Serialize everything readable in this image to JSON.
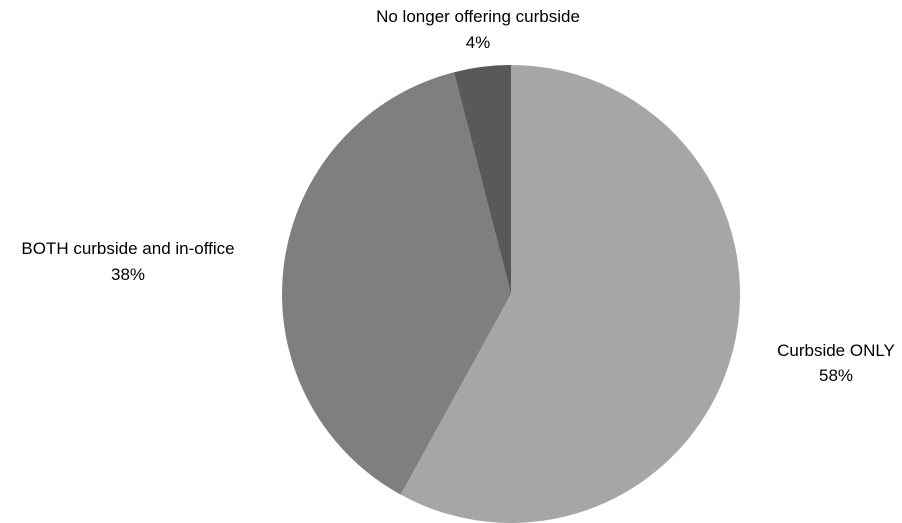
{
  "chart_data": {
    "type": "pie",
    "title": "",
    "start_angle_deg": 0,
    "direction": "clockwise",
    "slices": [
      {
        "label": "Curbside ONLY",
        "value": 58,
        "value_label": "58%",
        "color": "#a6a6a6"
      },
      {
        "label": "BOTH curbside and in-office",
        "value": 38,
        "value_label": "38%",
        "color": "#7f7f7f"
      },
      {
        "label": "No longer offering curbside",
        "value": 4,
        "value_label": "4%",
        "color": "#595959"
      }
    ],
    "legend": "none"
  }
}
